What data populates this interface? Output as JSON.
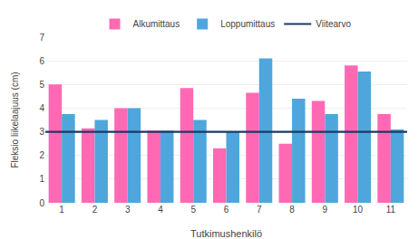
{
  "chart_data": {
    "type": "bar",
    "xlabel": "Tutkimushenkilö",
    "ylabel": "Fleksio liikelaajuus (cm)",
    "categories": [
      1,
      2,
      3,
      4,
      5,
      6,
      7,
      8,
      9,
      10,
      11
    ],
    "series": [
      {
        "name": "Alkumittaus",
        "type": "bar",
        "color": "#FF69B4",
        "values": [
          5.0,
          3.15,
          4.0,
          3.05,
          4.85,
          2.3,
          4.65,
          2.5,
          4.3,
          5.8,
          3.75
        ]
      },
      {
        "name": "Loppumittaus",
        "type": "bar",
        "color": "#4EA6DC",
        "values": [
          3.75,
          3.5,
          4.0,
          3.05,
          3.5,
          3.0,
          6.1,
          4.4,
          3.75,
          5.55,
          3.1
        ]
      },
      {
        "name": "Viitearvo",
        "type": "hline",
        "color": "#1F3864",
        "value": 3.0
      }
    ],
    "ylim": [
      0,
      7
    ],
    "yticks": [
      0,
      1,
      2,
      3,
      4,
      5,
      6,
      7
    ],
    "grid": true,
    "legend": "upper center"
  }
}
